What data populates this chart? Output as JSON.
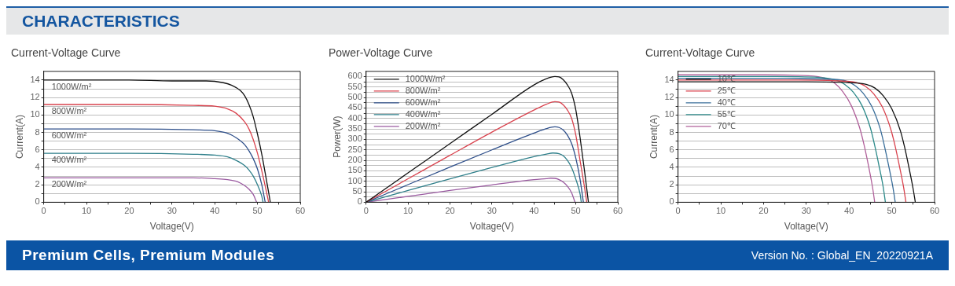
{
  "chart_data": [
    {
      "type": "other",
      "title": "CHARACTERISTICS"
    },
    {
      "type": "line",
      "title": "Current-Voltage Curve",
      "xlabel": "Voltage(V)",
      "ylabel": "Current(A)",
      "xlim": [
        0,
        60
      ],
      "ylim": [
        0,
        15
      ],
      "xticks": [
        0,
        {
          "value": 5,
          "label": null
        },
        10,
        {
          "value": 15,
          "label": null
        },
        20,
        {
          "value": 25,
          "label": null
        },
        30,
        {
          "value": 35,
          "label": null
        },
        40,
        {
          "value": 45,
          "label": null
        },
        50,
        {
          "value": 55,
          "label": null
        },
        60
      ],
      "yticks": [
        0,
        {
          "value": 1,
          "label": null
        },
        2,
        {
          "value": 3,
          "label": null
        },
        4,
        {
          "value": 5,
          "label": null
        },
        6,
        {
          "value": 7,
          "label": null
        },
        8,
        {
          "value": 9,
          "label": null
        },
        10,
        {
          "value": 11,
          "label": null
        },
        12,
        {
          "value": 13,
          "label": null
        },
        14
      ],
      "grid": "y",
      "legend": false,
      "marker": "none",
      "series": [
        {
          "name": "1000W/m²",
          "color": "#111111",
          "x": [
            0,
            10,
            20,
            30,
            38,
            42,
            44,
            46,
            47,
            48,
            49,
            50,
            51,
            52,
            53
          ],
          "values": [
            14,
            14,
            14,
            13.9,
            13.9,
            13.7,
            13.4,
            12.8,
            12.2,
            11.2,
            9.8,
            7.8,
            5.5,
            2.8,
            0
          ]
        },
        {
          "name": "800W/m²",
          "color": "#d9434e",
          "x": [
            0,
            20,
            35,
            40,
            43,
            45,
            47,
            48,
            49,
            50,
            51,
            52,
            52.6
          ],
          "values": [
            11.2,
            11.2,
            11.1,
            11,
            10.7,
            10.2,
            9.2,
            8.4,
            7.2,
            5.6,
            3.6,
            1.4,
            0
          ]
        },
        {
          "name": "600W/m²",
          "color": "#2e4f8a",
          "x": [
            0,
            20,
            35,
            40,
            43,
            45,
            47,
            48,
            49,
            50,
            51,
            51.8
          ],
          "values": [
            8.4,
            8.4,
            8.3,
            8.2,
            7.9,
            7.4,
            6.6,
            5.9,
            5,
            3.8,
            2,
            0
          ]
        },
        {
          "name": "400W/m²",
          "color": "#2e7f8a",
          "x": [
            0,
            20,
            35,
            40,
            43,
            45,
            47,
            48,
            49,
            50,
            51,
            51.3
          ],
          "values": [
            5.6,
            5.6,
            5.5,
            5.4,
            5.2,
            4.8,
            4.2,
            3.7,
            3,
            2,
            0.7,
            0
          ]
        },
        {
          "name": "200W/m²",
          "color": "#9a5aa0",
          "x": [
            0,
            20,
            35,
            40,
            43,
            45,
            46,
            47,
            48,
            49,
            49.8
          ],
          "values": [
            2.8,
            2.8,
            2.8,
            2.7,
            2.6,
            2.4,
            2.2,
            1.9,
            1.5,
            0.9,
            0
          ]
        }
      ]
    },
    {
      "type": "line",
      "title": "Power-Voltage Curve",
      "xlabel": "Voltage(V)",
      "ylabel": "Power(W)",
      "xlim": [
        0,
        60
      ],
      "ylim": [
        0,
        625
      ],
      "xticks": [
        0,
        {
          "value": 5,
          "label": null
        },
        10,
        {
          "value": 15,
          "label": null
        },
        20,
        {
          "value": 25,
          "label": null
        },
        30,
        {
          "value": 35,
          "label": null
        },
        40,
        {
          "value": 45,
          "label": null
        },
        50,
        {
          "value": 55,
          "label": null
        },
        60
      ],
      "yticks": [
        0,
        {
          "value": 25,
          "label": null
        },
        50,
        {
          "value": 75,
          "label": null
        },
        100,
        {
          "value": 125,
          "label": null
        },
        150,
        {
          "value": 175,
          "label": null
        },
        200,
        {
          "value": 225,
          "label": null
        },
        250,
        {
          "value": 275,
          "label": null
        },
        300,
        {
          "value": 325,
          "label": null
        },
        350,
        {
          "value": 375,
          "label": null
        },
        400,
        {
          "value": 425,
          "label": null
        },
        450,
        {
          "value": 475,
          "label": null
        },
        500,
        {
          "value": 525,
          "label": null
        },
        550,
        {
          "value": 575,
          "label": null
        },
        600
      ],
      "grid": "y",
      "legend": "top left",
      "marker": "none",
      "series": [
        {
          "name": "1000W/m²",
          "color": "#111111",
          "x": [
            0,
            10,
            20,
            30,
            40,
            43,
            45,
            46,
            47,
            48,
            49,
            50,
            51,
            52,
            53
          ],
          "values": [
            0,
            140,
            280,
            420,
            560,
            590,
            600,
            598,
            585,
            560,
            520,
            440,
            310,
            160,
            0
          ]
        },
        {
          "name": "800W/m²",
          "color": "#d9434e",
          "x": [
            0,
            10,
            20,
            30,
            40,
            43,
            45,
            46,
            47,
            48,
            49,
            50,
            51,
            52,
            52.6
          ],
          "values": [
            0,
            112,
            224,
            335,
            440,
            468,
            480,
            478,
            465,
            440,
            400,
            320,
            200,
            80,
            0
          ]
        },
        {
          "name": "600W/m²",
          "color": "#2e4f8a",
          "x": [
            0,
            10,
            20,
            30,
            40,
            43,
            45,
            46,
            47,
            48,
            49,
            50,
            51,
            51.8
          ],
          "values": [
            0,
            84,
            168,
            250,
            330,
            352,
            360,
            357,
            345,
            320,
            280,
            210,
            110,
            0
          ]
        },
        {
          "name": "400W/m²",
          "color": "#2e7f8a",
          "x": [
            0,
            10,
            20,
            30,
            40,
            43,
            44.5,
            46,
            47,
            48,
            49,
            50,
            51,
            51.3
          ],
          "values": [
            0,
            56,
            112,
            166,
            218,
            230,
            235,
            232,
            222,
            200,
            165,
            110,
            40,
            0
          ]
        },
        {
          "name": "200W/m²",
          "color": "#9a5aa0",
          "x": [
            0,
            10,
            20,
            30,
            40,
            43,
            44,
            45,
            46,
            47,
            48,
            49,
            49.8
          ],
          "values": [
            0,
            28,
            56,
            83,
            108,
            113,
            115,
            114,
            108,
            96,
            76,
            45,
            0
          ]
        }
      ]
    },
    {
      "type": "line",
      "title": "Current-Voltage Curve",
      "xlabel": "Voltage(V)",
      "ylabel": "Current(A)",
      "xlim": [
        0,
        60
      ],
      "ylim": [
        0,
        15
      ],
      "xticks": [
        0,
        {
          "value": 5,
          "label": null
        },
        10,
        {
          "value": 15,
          "label": null
        },
        20,
        {
          "value": 25,
          "label": null
        },
        30,
        {
          "value": 35,
          "label": null
        },
        40,
        {
          "value": 45,
          "label": null
        },
        50,
        {
          "value": 55,
          "label": null
        },
        60
      ],
      "yticks": [
        0,
        {
          "value": 1,
          "label": null
        },
        2,
        {
          "value": 3,
          "label": null
        },
        4,
        {
          "value": 5,
          "label": null
        },
        6,
        {
          "value": 7,
          "label": null
        },
        8,
        {
          "value": 9,
          "label": null
        },
        10,
        {
          "value": 11,
          "label": null
        },
        12,
        {
          "value": 13,
          "label": null
        },
        14
      ],
      "grid": "y",
      "legend": "top left",
      "marker": "none",
      "series": [
        {
          "name": "10℃",
          "color": "#111111",
          "x": [
            0,
            30,
            40,
            44,
            46,
            48,
            50,
            52,
            53,
            54,
            55,
            55.5
          ],
          "values": [
            13.8,
            13.8,
            13.7,
            13.5,
            13.1,
            12.2,
            10.7,
            8.2,
            6.3,
            4,
            1.5,
            0
          ]
        },
        {
          "name": "25℃",
          "color": "#d9434e",
          "x": [
            0,
            27.8,
            37.8,
            41.8,
            43.8,
            45.8,
            47.8,
            49.8,
            50.8,
            51.8,
            52.8,
            53.3
          ],
          "values": [
            14,
            14,
            13.9,
            13.7,
            13.3,
            12.4,
            10.9,
            8.3,
            6.4,
            4.1,
            1.6,
            0
          ]
        },
        {
          "name": "40℃",
          "color": "#3a6e9a",
          "x": [
            0,
            25.3,
            35.3,
            39.3,
            41.3,
            43.3,
            45.3,
            47.3,
            48.3,
            49.3,
            50.3,
            50.8
          ],
          "values": [
            14.2,
            14.2,
            14.1,
            13.9,
            13.4,
            12.5,
            11,
            8.4,
            6.4,
            4.1,
            1.6,
            0
          ]
        },
        {
          "name": "55℃",
          "color": "#2d8a8a",
          "x": [
            0,
            23,
            33,
            37,
            39,
            41,
            43,
            45,
            46,
            47,
            48,
            48.5
          ],
          "values": [
            14.4,
            14.4,
            14.3,
            14,
            13.5,
            12.6,
            11.1,
            8.5,
            6.5,
            4.2,
            1.7,
            0
          ]
        },
        {
          "name": "70℃",
          "color": "#b0609a",
          "x": [
            0,
            20.5,
            30.5,
            34.5,
            36.5,
            38.5,
            40.5,
            42.5,
            43.5,
            44.5,
            45.5,
            46
          ],
          "values": [
            14.6,
            14.6,
            14.5,
            14.2,
            13.7,
            12.7,
            11.1,
            8.5,
            6.6,
            4.3,
            1.7,
            0
          ]
        }
      ]
    },
    {
      "type": "other",
      "annotations": [
        "Premium Cells, Premium Modules",
        "Version No. : Global_EN_20220921A"
      ]
    }
  ]
}
